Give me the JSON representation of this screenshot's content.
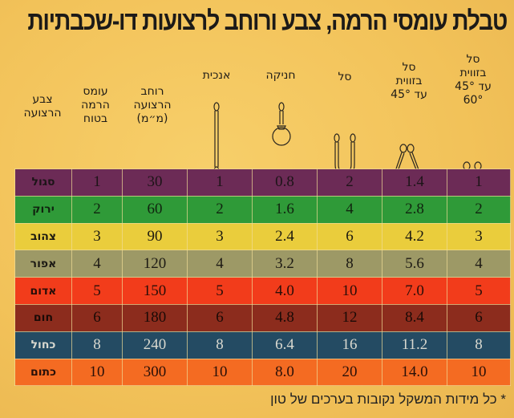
{
  "title": "טבלת עומסי הרמה, צבע ורוחב לרצועות דו-שכבתיות",
  "headers": {
    "color": [
      "צבע",
      "הרצועה"
    ],
    "load": [
      "עומס",
      "הרמה",
      "בטוח"
    ],
    "width": [
      "רוחב",
      "הרצועה",
      "(מ״מ)"
    ],
    "vertical": [
      "אנכית"
    ],
    "choke": [
      "חניקה"
    ],
    "basket": [
      "סל"
    ],
    "basket45": [
      "סל",
      "בזווית",
      "עד 45°"
    ],
    "basket60": [
      "סל",
      "בזווית",
      "עד 45°",
      "60°"
    ]
  },
  "icons": [
    "vertical-sling-icon",
    "choke-sling-icon",
    "basket-sling-icon",
    "basket-45-sling-icon",
    "basket-60-sling-icon"
  ],
  "rows": [
    {
      "color": "סגול",
      "load": "1",
      "width": "30",
      "vertical": "1",
      "choke": "0.8",
      "basket": "2",
      "basket45": "1.4",
      "basket60": "1",
      "bg": "#6c2b56",
      "fg": "#1d1418"
    },
    {
      "color": "ירוק",
      "load": "2",
      "width": "60",
      "vertical": "2",
      "choke": "1.6",
      "basket": "4",
      "basket45": "2.8",
      "basket60": "2",
      "bg": "#2f9a38",
      "fg": "#10240f"
    },
    {
      "color": "צהוב",
      "load": "3",
      "width": "90",
      "vertical": "3",
      "choke": "2.4",
      "basket": "6",
      "basket45": "4.2",
      "basket60": "3",
      "bg": "#eacd3c",
      "fg": "#1d1a10"
    },
    {
      "color": "אפור",
      "load": "4",
      "width": "120",
      "vertical": "4",
      "choke": "3.2",
      "basket": "8",
      "basket45": "5.6",
      "basket60": "4",
      "bg": "#9d9966",
      "fg": "#1d1a14"
    },
    {
      "color": "אדום",
      "load": "5",
      "width": "150",
      "vertical": "5",
      "choke": "4.0",
      "basket": "10",
      "basket45": "7.0",
      "basket60": "5",
      "bg": "#f23c1b",
      "fg": "#2a0e08"
    },
    {
      "color": "חום",
      "load": "6",
      "width": "180",
      "vertical": "6",
      "choke": "4.8",
      "basket": "12",
      "basket45": "8.4",
      "basket60": "6",
      "bg": "#8c2c1d",
      "fg": "#1a0a06"
    },
    {
      "color": "כחול",
      "load": "8",
      "width": "240",
      "vertical": "8",
      "choke": "6.4",
      "basket": "16",
      "basket45": "11.2",
      "basket60": "8",
      "bg": "#244b63",
      "fg": "#d8d8cf"
    },
    {
      "color": "כתום",
      "load": "10",
      "width": "300",
      "vertical": "10",
      "choke": "8.0",
      "basket": "20",
      "basket45": "14.0",
      "basket60": "10",
      "bg": "#f46b22",
      "fg": "#2a1008"
    }
  ],
  "footnote": "* כל מידות המשקל נקובות בערכים של טון"
}
